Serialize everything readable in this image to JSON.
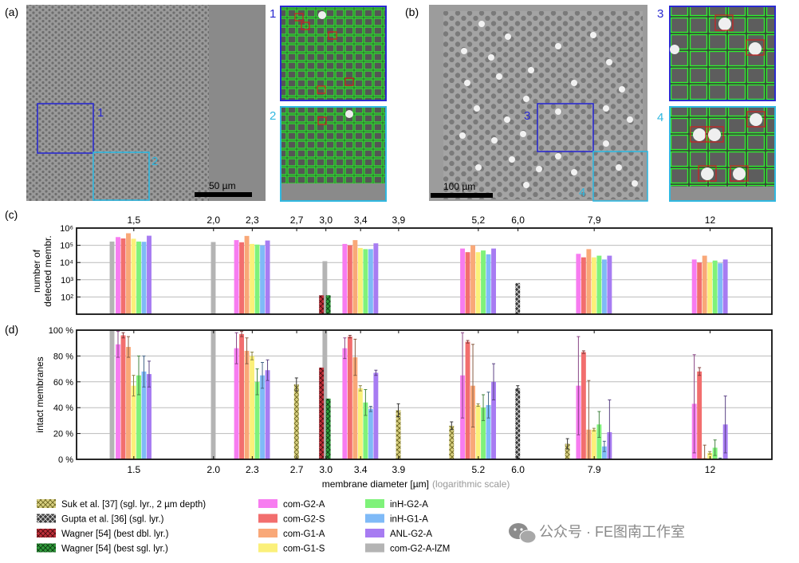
{
  "panel_labels": {
    "a": "(a)",
    "b": "(b)",
    "c": "(c)",
    "d": "(d)"
  },
  "sem": {
    "a": {
      "scale_bar": "50 µm",
      "region_labels": [
        "1",
        "2"
      ],
      "inset_labels": [
        "1",
        "2"
      ]
    },
    "b": {
      "scale_bar": "100 µm",
      "region_labels": [
        "3",
        "4"
      ],
      "inset_labels": [
        "3",
        "4"
      ]
    }
  },
  "colors": {
    "com-G2-A": "#f77cf0",
    "com-G2-S": "#f26e6e",
    "com-G1-A": "#f9a878",
    "com-G1-S": "#fbf07a",
    "inH-G2-A": "#7ff27a",
    "inH-G1-A": "#7fbaf7",
    "ANL-G2-A": "#a77cf2",
    "com-G2-A-lZM": "#b4b4b4",
    "suk": "#d8d080",
    "gupta": "#3a3a3a",
    "wagner_dbl": "#c0303a",
    "wagner_sgl": "#2f9b3a",
    "frame": "#111111",
    "grid": "#bbbbbb",
    "region_blue": "#2a2ad0",
    "region_cyan": "#30b8e0"
  },
  "legend": {
    "col1": [
      {
        "key": "suk",
        "label": "Suk et al. [37] (sgl. lyr., 2 µm depth)"
      },
      {
        "key": "gupta",
        "label": "Gupta et al. [36] (sgl. lyr.)"
      },
      {
        "key": "wagner_dbl",
        "label": "Wagner [54] (best dbl. lyr.)"
      },
      {
        "key": "wagner_sgl",
        "label": "Wagner [54] (best sgl. lyr.)"
      }
    ],
    "col2": [
      {
        "key": "com-G2-A",
        "label": "com-G2-A"
      },
      {
        "key": "com-G2-S",
        "label": "com-G2-S"
      },
      {
        "key": "com-G1-A",
        "label": "com-G1-A"
      },
      {
        "key": "com-G1-S",
        "label": "com-G1-S"
      }
    ],
    "col3": [
      {
        "key": "inH-G2-A",
        "label": "inH-G2-A"
      },
      {
        "key": "inH-G1-A",
        "label": "inH-G1-A"
      },
      {
        "key": "ANL-G2-A",
        "label": "ANL-G2-A"
      },
      {
        "key": "com-G2-A-lZM",
        "label": "com-G2-A-lZM"
      }
    ]
  },
  "watermark": "公众号 · FE图南工作室",
  "chart_data": [
    {
      "id": "c",
      "type": "bar",
      "title": "",
      "ylabel_lines": [
        "number of",
        "detected membr."
      ],
      "yscale": "log",
      "ylim": [
        10,
        1000000
      ],
      "ytick_labels": [
        "10²",
        "10³",
        "10⁴",
        "10⁵",
        "10⁶"
      ],
      "ytick_values": [
        100,
        1000,
        10000,
        100000,
        1000000
      ],
      "top_tick_labels": [
        "1,5",
        "2,0",
        "2,3",
        "2,7",
        "3,0",
        "3,4",
        "3,9",
        "5,2",
        "6,0",
        "7,9",
        "12"
      ],
      "diameters": [
        1.5,
        2.0,
        2.3,
        2.7,
        3.0,
        3.4,
        3.9,
        5.2,
        6.0,
        7.9,
        12
      ],
      "series": [
        {
          "name": "com-G2-A-lZM",
          "values": [
            165000,
            155000,
            null,
            null,
            12000,
            null,
            null,
            null,
            null,
            null,
            null
          ]
        },
        {
          "name": "com-G2-A",
          "values": [
            300000,
            null,
            200000,
            null,
            null,
            120000,
            null,
            65000,
            null,
            32000,
            15000
          ]
        },
        {
          "name": "com-G2-S",
          "values": [
            250000,
            null,
            150000,
            null,
            null,
            100000,
            null,
            40000,
            null,
            20000,
            10000
          ]
        },
        {
          "name": "com-G1-A",
          "values": [
            500000,
            null,
            350000,
            null,
            null,
            200000,
            null,
            100000,
            null,
            60000,
            25000
          ]
        },
        {
          "name": "com-G1-S",
          "values": [
            240000,
            null,
            120000,
            null,
            null,
            70000,
            null,
            40000,
            null,
            20000,
            10000
          ]
        },
        {
          "name": "inH-G2-A",
          "values": [
            165000,
            null,
            110000,
            null,
            null,
            60000,
            null,
            50000,
            null,
            25000,
            13000
          ]
        },
        {
          "name": "inH-G1-A",
          "values": [
            160000,
            null,
            100000,
            null,
            null,
            60000,
            null,
            30000,
            null,
            15000,
            9000
          ]
        },
        {
          "name": "ANL-G2-A",
          "values": [
            360000,
            null,
            190000,
            null,
            null,
            130000,
            null,
            65000,
            null,
            25000,
            15000
          ]
        },
        {
          "name": "Wagner [54] (best dbl. lyr.)",
          "values": [
            null,
            null,
            null,
            null,
            125,
            null,
            null,
            null,
            null,
            null,
            null
          ]
        },
        {
          "name": "Wagner [54] (best sgl. lyr.)",
          "values": [
            null,
            null,
            null,
            null,
            125,
            null,
            null,
            null,
            null,
            null,
            null
          ]
        },
        {
          "name": "Gupta et al. [36] (sgl. lyr.)",
          "values": [
            null,
            null,
            null,
            null,
            null,
            null,
            null,
            null,
            650,
            null,
            null
          ]
        }
      ]
    },
    {
      "id": "d",
      "type": "bar",
      "title": "",
      "ylabel": "intact membranes",
      "xlabel": "membrane diameter [µm]",
      "xlabel_note": "(logarithmic scale)",
      "xscale": "log",
      "ylim": [
        0,
        100
      ],
      "ytick_labels": [
        "0 %",
        "20 %",
        "40 %",
        "60 %",
        "80 %",
        "100 %"
      ],
      "ytick_values": [
        0,
        20,
        40,
        60,
        80,
        100
      ],
      "xtick_labels": [
        "1.5",
        "2.0",
        "2.3",
        "2.7",
        "3.0",
        "3.4",
        "3.9",
        "5.2",
        "6.0",
        "7.9",
        "12"
      ],
      "diameters": [
        1.5,
        2.0,
        2.3,
        2.7,
        3.0,
        3.4,
        3.9,
        5.2,
        6.0,
        7.9,
        12
      ],
      "series": [
        {
          "name": "com-G2-A-lZM",
          "values": [
            100,
            100,
            null,
            null,
            100,
            null,
            null,
            null,
            null,
            null,
            null
          ],
          "errors": [
            null,
            null,
            null,
            null,
            null,
            null,
            null,
            null,
            null,
            null,
            null
          ]
        },
        {
          "name": "com-G2-A",
          "values": [
            89,
            null,
            86,
            null,
            null,
            86,
            null,
            65,
            null,
            57,
            43
          ],
          "errors": [
            10,
            null,
            12,
            null,
            null,
            8,
            null,
            33,
            null,
            38,
            38
          ]
        },
        {
          "name": "com-G2-S",
          "values": [
            96,
            null,
            97,
            null,
            null,
            95,
            null,
            91,
            null,
            83,
            68
          ],
          "errors": [
            2,
            null,
            2,
            null,
            null,
            1,
            null,
            1,
            null,
            1,
            3
          ]
        },
        {
          "name": "com-G1-A",
          "values": [
            87,
            null,
            84,
            null,
            null,
            79,
            null,
            57,
            null,
            23,
            1
          ],
          "errors": [
            8,
            null,
            10,
            null,
            null,
            14,
            null,
            32,
            null,
            38,
            10
          ]
        },
        {
          "name": "com-G1-S",
          "values": [
            57,
            null,
            80,
            null,
            null,
            55,
            null,
            42,
            null,
            23,
            5
          ],
          "errors": [
            8,
            null,
            3,
            null,
            null,
            2,
            null,
            1,
            null,
            1,
            1
          ]
        },
        {
          "name": "inH-G2-A",
          "values": [
            65,
            null,
            60,
            null,
            null,
            44,
            null,
            40,
            null,
            27,
            9
          ],
          "errors": [
            15,
            null,
            10,
            null,
            null,
            10,
            null,
            10,
            null,
            10,
            6
          ]
        },
        {
          "name": "inH-G1-A",
          "values": [
            68,
            null,
            65,
            null,
            null,
            39,
            null,
            42,
            null,
            10,
            0
          ],
          "errors": [
            12,
            null,
            10,
            null,
            null,
            2,
            null,
            10,
            null,
            4,
            1
          ]
        },
        {
          "name": "ANL-G2-A",
          "values": [
            66,
            null,
            69,
            null,
            null,
            67,
            null,
            60,
            null,
            21,
            27
          ],
          "errors": [
            10,
            null,
            8,
            null,
            null,
            2,
            null,
            14,
            null,
            25,
            22
          ]
        },
        {
          "name": "Suk et al. [37] (sgl. lyr., 2 µm depth)",
          "values": [
            null,
            null,
            null,
            58,
            null,
            null,
            38,
            26,
            null,
            12,
            null
          ],
          "errors": [
            null,
            null,
            null,
            5,
            null,
            null,
            5,
            3,
            null,
            4,
            null
          ]
        },
        {
          "name": "Wagner [54] (best dbl. lyr.)",
          "values": [
            null,
            null,
            null,
            null,
            71,
            null,
            null,
            null,
            null,
            null,
            null
          ],
          "errors": [
            null,
            null,
            null,
            null,
            null,
            null,
            null,
            null,
            null,
            null,
            null
          ]
        },
        {
          "name": "Wagner [54] (best sgl. lyr.)",
          "values": [
            null,
            null,
            null,
            null,
            47,
            null,
            null,
            null,
            null,
            null,
            null
          ],
          "errors": [
            null,
            null,
            null,
            null,
            null,
            null,
            null,
            null,
            null,
            null,
            null
          ]
        },
        {
          "name": "Gupta et al. [36] (sgl. lyr.)",
          "values": [
            null,
            null,
            null,
            null,
            null,
            null,
            null,
            null,
            55,
            null,
            null
          ],
          "errors": [
            null,
            null,
            null,
            null,
            null,
            null,
            null,
            null,
            2,
            null,
            null
          ]
        }
      ]
    }
  ]
}
